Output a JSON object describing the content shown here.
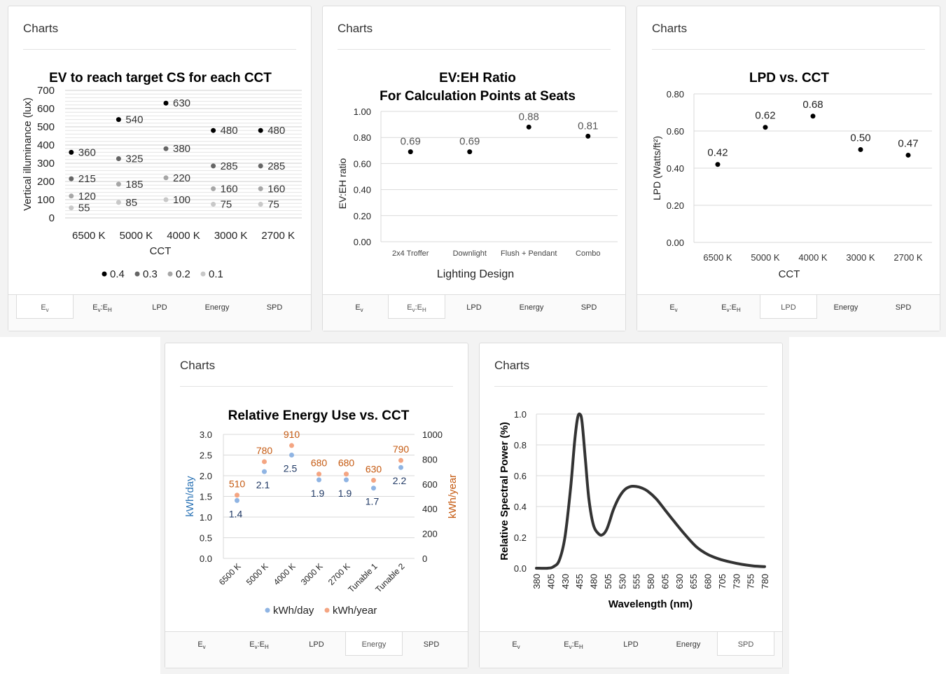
{
  "panels": [
    {
      "header": "Charts",
      "tabs": [
        "Ev",
        "Ev:EH",
        "LPD",
        "Energy",
        "SPD"
      ],
      "active_tab": 0,
      "chart_data": {
        "type": "scatter",
        "title": "EV to reach target CS for each CCT",
        "xlabel": "CCT",
        "ylabel": "Vertical illuminance (lux)",
        "categories": [
          "6500 K",
          "5000 K",
          "4000 K",
          "3000 K",
          "2700 K"
        ],
        "ylim": [
          0,
          700
        ],
        "yticks": [
          0,
          100,
          200,
          300,
          400,
          500,
          600,
          700
        ],
        "grid": true,
        "legend_position": "bottom",
        "series": [
          {
            "name": "0.4",
            "color": "#000000",
            "values": [
              360,
              540,
              630,
              480,
              480
            ]
          },
          {
            "name": "0.3",
            "color": "#666666",
            "values": [
              215,
              325,
              380,
              285,
              285
            ]
          },
          {
            "name": "0.2",
            "color": "#a6a6a6",
            "values": [
              120,
              185,
              220,
              160,
              160
            ]
          },
          {
            "name": "0.1",
            "color": "#c8c8c8",
            "values": [
              55,
              85,
              100,
              75,
              75
            ]
          }
        ]
      }
    },
    {
      "header": "Charts",
      "tabs": [
        "Ev",
        "Ev:EH",
        "LPD",
        "Energy",
        "SPD"
      ],
      "active_tab": 1,
      "chart_data": {
        "type": "scatter",
        "title": "EV:EH Ratio",
        "subtitle": "For Calculation Points at Seats",
        "xlabel": "Lighting Design",
        "ylabel": "EV:EH ratio",
        "categories": [
          "2x4 Troffer",
          "Downlight",
          "Flush + Pendant",
          "Combo"
        ],
        "ylim": [
          0,
          1.0
        ],
        "yticks": [
          "0.00",
          "0.20",
          "0.40",
          "0.60",
          "0.80",
          "1.00"
        ],
        "grid": true,
        "series": [
          {
            "color": "#000000",
            "values": [
              0.69,
              0.69,
              0.88,
              0.81
            ],
            "labels": [
              "0.69",
              "0.69",
              "0.88",
              "0.81"
            ]
          }
        ]
      }
    },
    {
      "header": "Charts",
      "tabs": [
        "Ev",
        "Ev:EH",
        "LPD",
        "Energy",
        "SPD"
      ],
      "active_tab": 2,
      "chart_data": {
        "type": "scatter",
        "title": "LPD vs. CCT",
        "xlabel": "CCT",
        "ylabel": "LPD (Watts/ft²)",
        "categories": [
          "6500 K",
          "5000 K",
          "4000 K",
          "3000 K",
          "2700 K"
        ],
        "ylim": [
          0,
          0.8
        ],
        "yticks": [
          "0.00",
          "0.20",
          "0.40",
          "0.60",
          "0.80"
        ],
        "grid": true,
        "series": [
          {
            "color": "#000000",
            "values": [
              0.42,
              0.62,
              0.68,
              0.5,
              0.47
            ],
            "labels": [
              "0.42",
              "0.62",
              "0.68",
              "0.50",
              "0.47"
            ]
          }
        ]
      }
    },
    {
      "header": "Charts",
      "tabs": [
        "Ev",
        "Ev:EH",
        "LPD",
        "Energy",
        "SPD"
      ],
      "active_tab": 3,
      "chart_data": {
        "type": "scatter",
        "title": "Relative Energy Use vs.  CCT",
        "ylabel": "kWh/day",
        "y2label": "kWh/year",
        "categories": [
          "6500 K",
          "5000 K",
          "4000 K",
          "3000 K",
          "2700 K",
          "Tunable 1",
          "Tunable 2"
        ],
        "ylim": [
          0,
          3.0
        ],
        "y2lim": [
          0,
          1000
        ],
        "yticks": [
          "0.0",
          "0.5",
          "1.0",
          "1.5",
          "2.0",
          "2.5",
          "3.0"
        ],
        "y2ticks": [
          "0",
          "200",
          "400",
          "600",
          "800",
          "1000"
        ],
        "grid": true,
        "legend_position": "bottom",
        "series": [
          {
            "name": "kWh/day",
            "axis": "left",
            "color": "#8fb4e3",
            "label_color": "#1f3864",
            "values": [
              1.4,
              2.1,
              2.5,
              1.9,
              1.9,
              1.7,
              2.2
            ],
            "labels": [
              "1.4",
              "2.1",
              "2.5",
              "1.9",
              "1.9",
              "1.7",
              "2.2"
            ]
          },
          {
            "name": "kWh/year",
            "axis": "right",
            "color": "#f4a582",
            "label_color": "#c55a11",
            "values": [
              510,
              780,
              910,
              680,
              680,
              630,
              790
            ],
            "labels": [
              "510",
              "780",
              "910",
              "680",
              "680",
              "630",
              "790"
            ]
          }
        ]
      }
    },
    {
      "header": "Charts",
      "tabs": [
        "Ev",
        "Ev:EH",
        "LPD",
        "Energy",
        "SPD"
      ],
      "active_tab": 4,
      "chart_data": {
        "type": "line",
        "xlabel": "Wavelength (nm)",
        "ylabel": "Relative Spectral Power (%)",
        "xticks": [
          "380",
          "405",
          "430",
          "455",
          "480",
          "505",
          "530",
          "555",
          "580",
          "605",
          "630",
          "655",
          "680",
          "705",
          "730",
          "755",
          "780"
        ],
        "xlim": [
          380,
          780
        ],
        "ylim": [
          0,
          1.0
        ],
        "yticks": [
          "0.0",
          "0.2",
          "0.4",
          "0.6",
          "0.8",
          "1.0"
        ],
        "grid": true,
        "series": [
          {
            "color": "#333333",
            "x": [
              380,
              400,
              410,
              420,
              430,
              440,
              447,
              452,
              456,
              460,
              466,
              472,
              480,
              490,
              497,
              503,
              508,
              515,
              525,
              535,
              545,
              555,
              565,
              575,
              590,
              605,
              620,
              640,
              660,
              680,
              700,
              720,
              740,
              760,
              780
            ],
            "values": [
              0.0,
              0.0,
              0.01,
              0.05,
              0.2,
              0.52,
              0.82,
              0.97,
              1.0,
              0.95,
              0.7,
              0.45,
              0.28,
              0.22,
              0.22,
              0.25,
              0.3,
              0.38,
              0.46,
              0.51,
              0.53,
              0.53,
              0.52,
              0.5,
              0.45,
              0.38,
              0.31,
              0.22,
              0.14,
              0.09,
              0.06,
              0.04,
              0.025,
              0.015,
              0.01
            ]
          }
        ]
      }
    }
  ]
}
